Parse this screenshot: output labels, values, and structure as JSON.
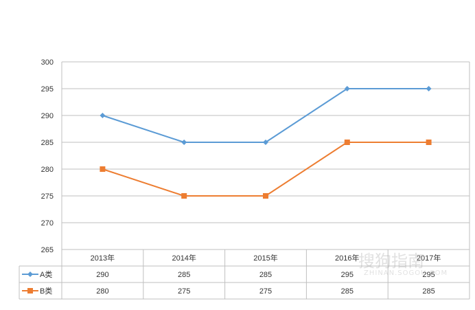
{
  "chart_data": {
    "type": "line",
    "title": "",
    "xlabel": "",
    "ylabel": "",
    "categories": [
      "2013年",
      "2014年",
      "2015年",
      "2016年",
      "2017年"
    ],
    "series": [
      {
        "name": "A类",
        "values": [
          290,
          285,
          285,
          295,
          295
        ],
        "color": "#5b9bd5",
        "marker": "diamond"
      },
      {
        "name": "B类",
        "values": [
          280,
          275,
          275,
          285,
          285
        ],
        "color": "#ed7d31",
        "marker": "square"
      }
    ],
    "ylim": [
      265,
      300
    ],
    "yticks": [
      265,
      270,
      275,
      280,
      285,
      290,
      295,
      300
    ],
    "grid": true,
    "legend": "data-table"
  },
  "watermark": {
    "text": "搜狗指南",
    "subtext": "ZHINAN.SOGOU.COM"
  }
}
